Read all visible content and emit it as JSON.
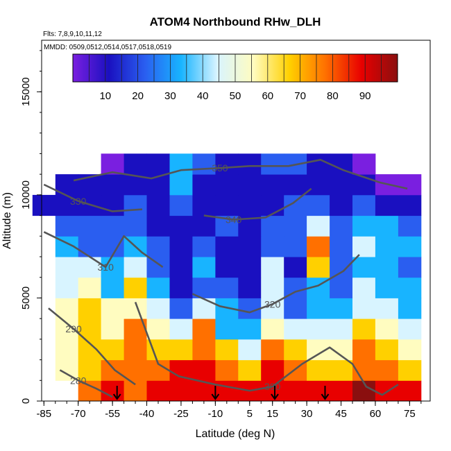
{
  "chart_data": {
    "type": "heatmap",
    "title": "ATOM4 Northbound RHw_DLH",
    "subtitle_flights": "Flts: 7,8,9,10,11,12",
    "subtitle_dates": "MMDD: 0509,0512,0514,0517,0518,0519",
    "xlabel": "Latitude (deg N)",
    "ylabel": "Altitude (m)",
    "xlim": [
      -86,
      84
    ],
    "ylim": [
      0,
      17500
    ],
    "x_ticks": [
      -85,
      -70,
      -55,
      -40,
      -25,
      -10,
      5,
      15,
      30,
      45,
      60,
      75
    ],
    "y_ticks": [
      0,
      5000,
      10000,
      15000
    ],
    "grid": false,
    "colorbar": {
      "position": "top-inside",
      "range": [
        0,
        100
      ],
      "ticks": [
        10,
        20,
        30,
        40,
        50,
        60,
        70,
        80,
        90
      ],
      "colors": [
        "#7a1fe0",
        "#1a10c0",
        "#2a5ef0",
        "#18b4ff",
        "#d8f4ff",
        "#fffcc0",
        "#ffd000",
        "#ff7000",
        "#e80000",
        "#8a0f0f"
      ]
    },
    "rh_field": {
      "lat_bins": [
        -85,
        -75,
        -65,
        -55,
        -45,
        -35,
        -25,
        -15,
        -5,
        5,
        15,
        25,
        35,
        45,
        55,
        65,
        75
      ],
      "alt_bins": [
        500,
        1500,
        2500,
        3500,
        4500,
        5500,
        6500,
        7500,
        8500,
        9500,
        10500,
        11500
      ],
      "values": [
        [
          null,
          null,
          70,
          80,
          75,
          80,
          88,
          85,
          80,
          82,
          85,
          88,
          80,
          85,
          90,
          85,
          80
        ],
        [
          null,
          55,
          65,
          70,
          72,
          70,
          82,
          80,
          70,
          65,
          80,
          72,
          65,
          60,
          75,
          70,
          65
        ],
        [
          null,
          55,
          60,
          62,
          75,
          62,
          60,
          75,
          60,
          40,
          70,
          62,
          55,
          50,
          70,
          60,
          55
        ],
        [
          null,
          55,
          62,
          58,
          70,
          55,
          40,
          70,
          35,
          30,
          55,
          45,
          40,
          40,
          60,
          50,
          40
        ],
        [
          null,
          50,
          60,
          50,
          55,
          45,
          25,
          40,
          30,
          20,
          40,
          25,
          35,
          30,
          45,
          40,
          30
        ],
        [
          null,
          45,
          55,
          35,
          60,
          30,
          15,
          25,
          20,
          15,
          45,
          20,
          30,
          25,
          40,
          35,
          30
        ],
        [
          null,
          40,
          40,
          30,
          45,
          25,
          12,
          30,
          18,
          12,
          40,
          15,
          60,
          20,
          35,
          30,
          25
        ],
        [
          null,
          30,
          28,
          25,
          35,
          20,
          10,
          20,
          15,
          10,
          25,
          20,
          70,
          25,
          40,
          35,
          30
        ],
        [
          null,
          20,
          22,
          20,
          25,
          15,
          15,
          15,
          20,
          15,
          20,
          25,
          40,
          25,
          35,
          30,
          20
        ],
        [
          15,
          18,
          15,
          15,
          20,
          15,
          20,
          15,
          15,
          12,
          15,
          20,
          20,
          18,
          20,
          15,
          15
        ],
        [
          null,
          12,
          12,
          12,
          18,
          15,
          30,
          15,
          12,
          12,
          15,
          15,
          15,
          12,
          10,
          5,
          8
        ],
        [
          null,
          null,
          null,
          8,
          10,
          15,
          35,
          20,
          15,
          15,
          20,
          20,
          15,
          10,
          8,
          null,
          null
        ]
      ]
    },
    "theta_contours": [
      {
        "label": "280",
        "points": [
          [
            -78,
            1500
          ],
          [
            -70,
            1000
          ],
          [
            -62,
            600
          ],
          [
            -55,
            200
          ]
        ]
      },
      {
        "label": "290",
        "points": [
          [
            -83,
            4500
          ],
          [
            -72,
            3500
          ],
          [
            -62,
            2500
          ],
          [
            -54,
            1500
          ],
          [
            -45,
            800
          ]
        ]
      },
      {
        "label": "300",
        "points": [
          [
            -45,
            4800
          ],
          [
            -35,
            1800
          ],
          [
            -26,
            1200
          ],
          [
            -10,
            800
          ],
          [
            5,
            500
          ],
          [
            15,
            700
          ],
          [
            28,
            1800
          ],
          [
            40,
            2600
          ],
          [
            50,
            1800
          ],
          [
            56,
            700
          ],
          [
            63,
            300
          ],
          [
            70,
            800
          ]
        ]
      },
      {
        "label": "310",
        "points": [
          [
            -85,
            8200
          ],
          [
            -72,
            7500
          ],
          [
            -58,
            6500
          ],
          [
            -50,
            8000
          ],
          [
            -42,
            7200
          ],
          [
            -33,
            6500
          ]
        ]
      },
      {
        "label": "320",
        "points": [
          [
            -20,
            5200
          ],
          [
            -8,
            4600
          ],
          [
            5,
            4300
          ],
          [
            15,
            4700
          ],
          [
            25,
            5300
          ],
          [
            35,
            5600
          ],
          [
            46,
            6300
          ],
          [
            53,
            7100
          ]
        ]
      },
      {
        "label": "330",
        "points": [
          [
            -85,
            10500
          ],
          [
            -70,
            9700
          ],
          [
            -55,
            9200
          ],
          [
            -42,
            9300
          ]
        ]
      },
      {
        "label": "340",
        "points": [
          [
            -15,
            9000
          ],
          [
            -2,
            8800
          ],
          [
            12,
            8900
          ],
          [
            24,
            9600
          ],
          [
            32,
            10300
          ]
        ]
      },
      {
        "label": "350",
        "points": [
          [
            -72,
            10700
          ],
          [
            -55,
            11100
          ],
          [
            -38,
            10800
          ],
          [
            -25,
            11200
          ],
          [
            -8,
            11300
          ],
          [
            5,
            11400
          ],
          [
            22,
            11400
          ],
          [
            36,
            11700
          ],
          [
            46,
            11200
          ],
          [
            62,
            10600
          ],
          [
            74,
            10300
          ]
        ]
      }
    ],
    "flight_arrows_lat": [
      -53,
      -10,
      16,
      38
    ]
  }
}
